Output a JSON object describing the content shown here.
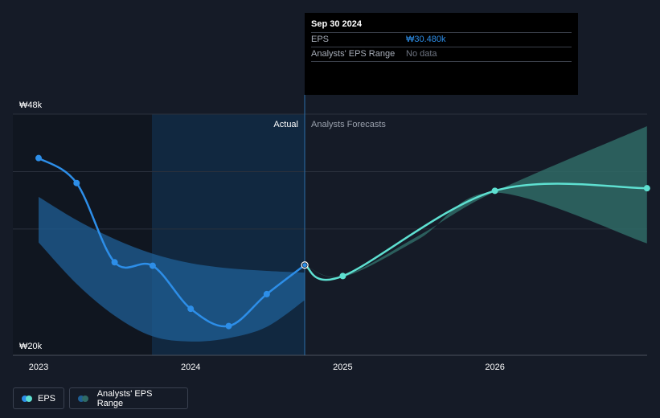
{
  "tooltip": {
    "date": "Sep 30 2024",
    "rows": [
      {
        "label": "EPS",
        "value": "₩30.480k"
      },
      {
        "label": "Analysts' EPS Range",
        "value": "No data"
      }
    ]
  },
  "legend": {
    "eps_label": "EPS",
    "range_label": "Analysts' EPS Range"
  },
  "colors": {
    "eps_actual": "#2d8ee8",
    "eps_forecast": "#5ee0d1",
    "range_actual": "#1f5f95",
    "range_forecast": "#2f6a66",
    "background": "#151b27",
    "past_shade": "#101620",
    "highlight_band": "#112840"
  },
  "chart_data": {
    "type": "line",
    "y_tick_labels": [
      "₩48k",
      "₩20k"
    ],
    "ylim": [
      20,
      48
    ],
    "x_tick_labels": [
      "2023",
      "2024",
      "2025",
      "2026"
    ],
    "xlim": [
      2023,
      2027.0
    ],
    "divider_labels": {
      "actual": "Actual",
      "forecast": "Analysts Forecasts"
    },
    "divider_x": 2024.75,
    "highlight_band": [
      2023.75,
      2024.75
    ],
    "grid": true,
    "legend_position": "bottom-left",
    "series": [
      {
        "name": "EPS",
        "kind": "actual",
        "points": [
          {
            "x": 2023.0,
            "y": 42.9
          },
          {
            "x": 2023.25,
            "y": 40.0
          },
          {
            "x": 2023.5,
            "y": 30.8
          },
          {
            "x": 2023.75,
            "y": 30.4
          },
          {
            "x": 2024.0,
            "y": 25.4
          },
          {
            "x": 2024.25,
            "y": 23.4
          },
          {
            "x": 2024.5,
            "y": 27.1
          },
          {
            "x": 2024.75,
            "y": 30.48
          }
        ]
      },
      {
        "name": "EPS",
        "kind": "forecast",
        "points": [
          {
            "x": 2024.75,
            "y": 30.48
          },
          {
            "x": 2025.0,
            "y": 29.2
          },
          {
            "x": 2026.0,
            "y": 39.1
          },
          {
            "x": 2027.0,
            "y": 39.4
          }
        ]
      }
    ],
    "range_actual": {
      "x": [
        2023.0,
        2023.25,
        2023.5,
        2023.75,
        2024.0,
        2024.25,
        2024.5,
        2024.75
      ],
      "upper": [
        38.4,
        35.7,
        33.5,
        31.8,
        30.7,
        30.1,
        29.8,
        29.6
      ],
      "lower": [
        33.1,
        28.3,
        24.6,
        22.2,
        21.6,
        22.0,
        23.3,
        26.4
      ]
    },
    "range_forecast": {
      "x": [
        2024.75,
        2025.0,
        2025.5,
        2026.0,
        2027.0
      ],
      "upper": [
        30.48,
        29.2,
        33.9,
        39.0,
        46.6
      ],
      "lower": [
        30.48,
        29.1,
        33.5,
        38.9,
        33.0
      ]
    }
  }
}
